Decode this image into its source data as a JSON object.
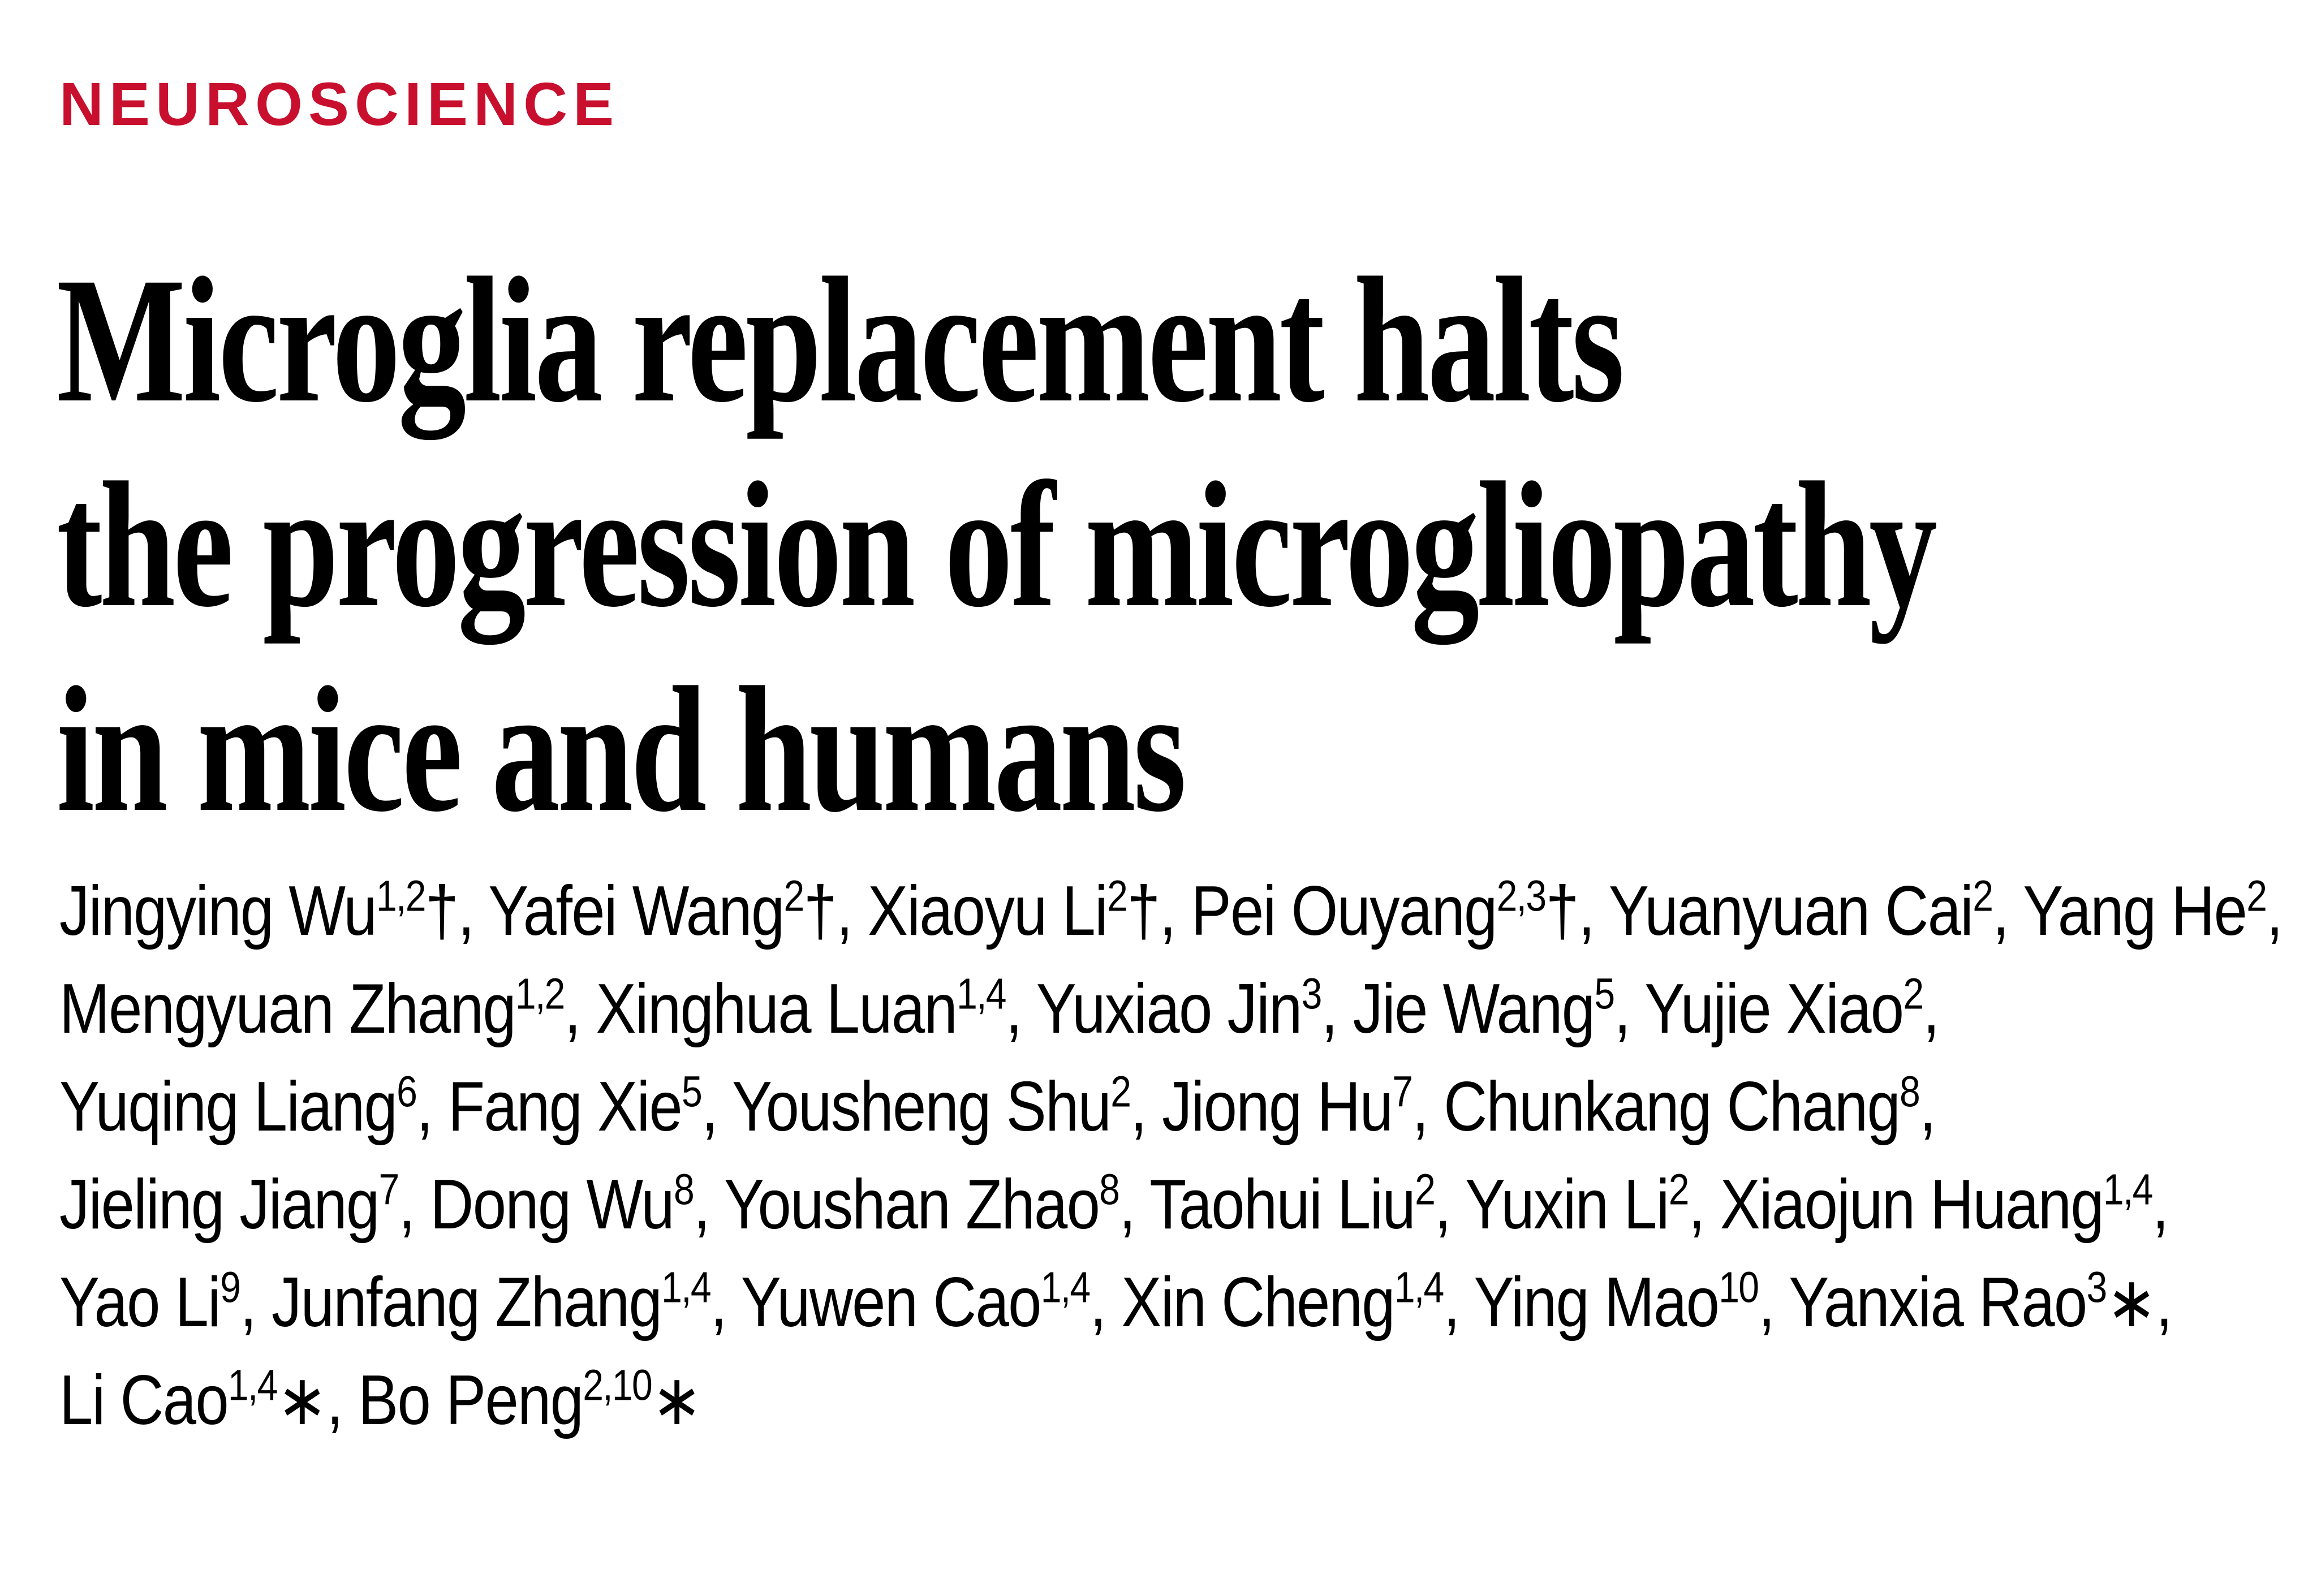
{
  "section": "NEUROSCIENCE",
  "title_lines": [
    "Microglia replacement halts",
    "the progression of microgliopathy",
    "in mice and humans"
  ],
  "authors": [
    {
      "name": "Jingying Wu",
      "affiliations": "1,2",
      "mark": "†"
    },
    {
      "name": "Yafei Wang",
      "affiliations": "2",
      "mark": "†"
    },
    {
      "name": "Xiaoyu Li",
      "affiliations": "2",
      "mark": "†"
    },
    {
      "name": "Pei Ouyang",
      "affiliations": "2,3",
      "mark": "†"
    },
    {
      "name": "Yuanyuan Cai",
      "affiliations": "2"
    },
    {
      "name": "Yang He",
      "affiliations": "2"
    },
    {
      "name": "Mengyuan Zhang",
      "affiliations": "1,2"
    },
    {
      "name": "Xinghua Luan",
      "affiliations": "1,4"
    },
    {
      "name": "Yuxiao Jin",
      "affiliations": "3"
    },
    {
      "name": "Jie Wang",
      "affiliations": "5"
    },
    {
      "name": "Yujie Xiao",
      "affiliations": "2"
    },
    {
      "name": "Yuqing Liang",
      "affiliations": "6"
    },
    {
      "name": "Fang Xie",
      "affiliations": "5"
    },
    {
      "name": "Yousheng Shu",
      "affiliations": "2"
    },
    {
      "name": "Jiong Hu",
      "affiliations": "7"
    },
    {
      "name": "Chunkang Chang",
      "affiliations": "8"
    },
    {
      "name": "Jieling Jiang",
      "affiliations": "7"
    },
    {
      "name": "Dong Wu",
      "affiliations": "8"
    },
    {
      "name": "Youshan Zhao",
      "affiliations": "8"
    },
    {
      "name": "Taohui Liu",
      "affiliations": "2"
    },
    {
      "name": "Yuxin Li",
      "affiliations": "2"
    },
    {
      "name": "Xiaojun Huang",
      "affiliations": "1,4"
    },
    {
      "name": "Yao Li",
      "affiliations": "9"
    },
    {
      "name": "Junfang Zhang",
      "affiliations": "1,4"
    },
    {
      "name": "Yuwen Cao",
      "affiliations": "1,4"
    },
    {
      "name": "Xin Cheng",
      "affiliations": "1,4"
    },
    {
      "name": "Ying Mao",
      "affiliations": "10"
    },
    {
      "name": "Yanxia Rao",
      "affiliations": "3",
      "mark": "∗"
    },
    {
      "name": "Li Cao",
      "affiliations": "1,4",
      "mark": "∗"
    },
    {
      "name": "Bo Peng",
      "affiliations": "2,10",
      "mark": "∗"
    }
  ]
}
